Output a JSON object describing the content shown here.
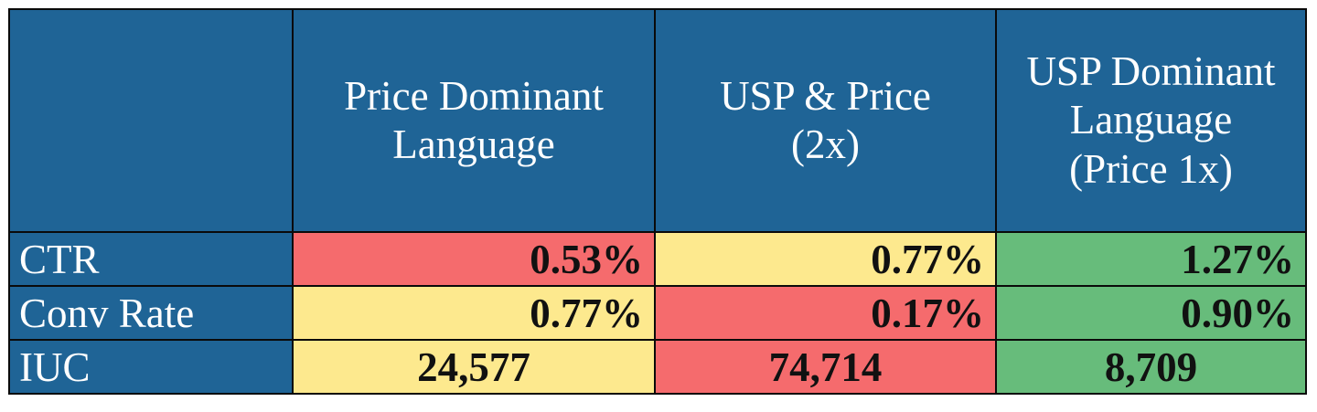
{
  "colors": {
    "header_bg": "#1f6496",
    "red": "#f56b6d",
    "yellow": "#fde98e",
    "green": "#67bc7b",
    "border": "#0a0a0a"
  },
  "chart_data": {
    "type": "table",
    "columns": [
      "Price Dominant Language",
      "USP & Price (2x)",
      "USP Dominant Language (Price 1x)"
    ],
    "header_lines": [
      [
        "Price Dominant",
        "Language"
      ],
      [
        "USP & Price",
        "(2x)"
      ],
      [
        "USP Dominant",
        "Language",
        "(Price 1x)"
      ]
    ],
    "rows": [
      {
        "label": "CTR",
        "values": [
          "0.53%",
          "0.77%",
          "1.27%"
        ],
        "numeric": [
          0.53,
          0.77,
          1.27
        ],
        "unit": "%",
        "cell_colors": [
          "red",
          "yellow",
          "green"
        ],
        "align": "right"
      },
      {
        "label": "Conv Rate",
        "values": [
          "0.77%",
          "0.17%",
          "0.90%"
        ],
        "numeric": [
          0.77,
          0.17,
          0.9
        ],
        "unit": "%",
        "cell_colors": [
          "yellow",
          "red",
          "green"
        ],
        "align": "right"
      },
      {
        "label": "IUC",
        "values": [
          "24,577",
          "74,714",
          "8,709"
        ],
        "numeric": [
          24577,
          74714,
          8709
        ],
        "unit": "",
        "cell_colors": [
          "yellow",
          "red",
          "green"
        ],
        "align": "center"
      }
    ]
  }
}
